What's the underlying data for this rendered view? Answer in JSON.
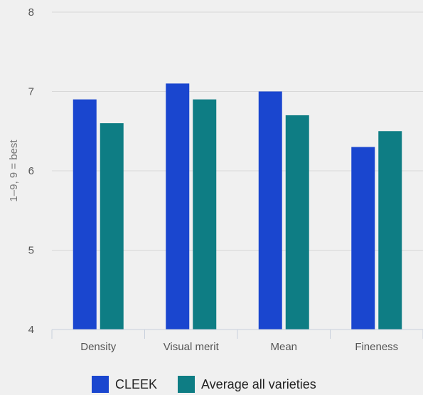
{
  "chart_data": {
    "type": "bar",
    "categories": [
      "Density",
      "Visual merit",
      "Mean",
      "Fineness"
    ],
    "series": [
      {
        "name": "CLEEK",
        "values": [
          6.9,
          7.1,
          7.0,
          6.3
        ],
        "color": "#1a46cf"
      },
      {
        "name": "Average all varieties",
        "values": [
          6.6,
          6.9,
          6.7,
          6.5
        ],
        "color": "#0e7d84"
      }
    ],
    "ylabel": "1–9, 9 = best",
    "ylim": [
      4,
      8
    ],
    "yticks": [
      "4",
      "5",
      "6",
      "7",
      "8"
    ],
    "grid": true,
    "legend_position": "bottom"
  }
}
